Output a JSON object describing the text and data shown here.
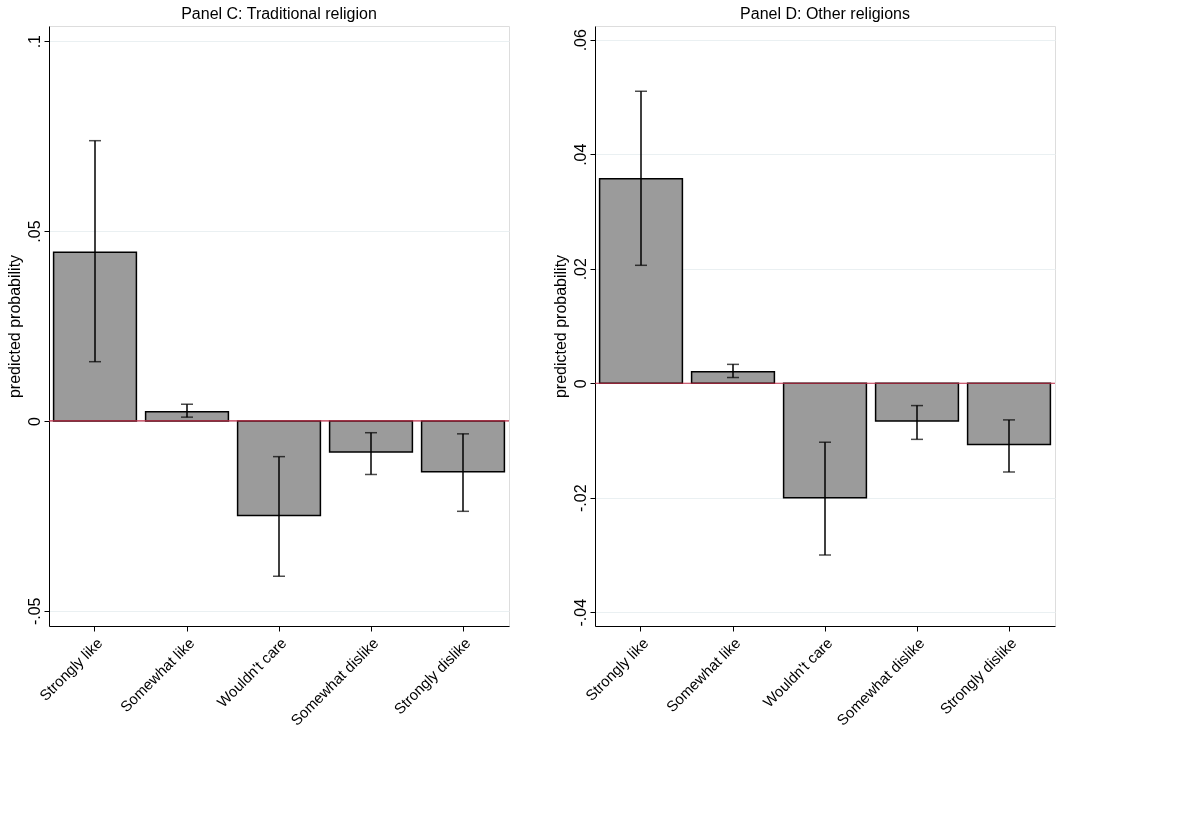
{
  "chart_data": [
    {
      "type": "bar",
      "title": "Panel C: Traditional religion",
      "ylabel": "predicted probability",
      "categories": [
        "Strongly like",
        "Somewhat like",
        "Wouldn't care",
        "Somewhat dislike",
        "Strongly dislike"
      ],
      "values": [
        0.0444,
        0.0024,
        -0.0249,
        -0.0082,
        -0.0134
      ],
      "errors": [
        [
          0.0156,
          0.0738
        ],
        [
          0.001,
          0.0044
        ],
        [
          -0.0409,
          -0.0094
        ],
        [
          -0.0141,
          -0.0031
        ],
        [
          -0.0238,
          -0.0034
        ]
      ],
      "color": "#9b9b9b",
      "ylim": [
        -0.054,
        0.104
      ],
      "yticks": [
        {
          "value": -0.05,
          "label": "-.05"
        },
        0,
        {
          "value": 0.05,
          "label": ".05"
        },
        {
          "value": 0.1,
          "label": ".1"
        }
      ],
      "ref_lines": [
        {
          "axis": "y",
          "value": 0,
          "color": "#c0304a"
        }
      ],
      "grid": "y"
    },
    {
      "type": "bar",
      "title": "Panel D: Other religions",
      "ylabel": "predicted probability",
      "categories": [
        "Strongly like",
        "Somewhat like",
        "Wouldn't care",
        "Somewhat dislike",
        "Strongly dislike"
      ],
      "values": [
        0.0357,
        0.002,
        -0.02,
        -0.0066,
        -0.0107
      ],
      "errors": [
        [
          0.0206,
          0.051
        ],
        [
          0.001,
          0.0033
        ],
        [
          -0.03,
          -0.0103
        ],
        [
          -0.0098,
          -0.0039
        ],
        [
          -0.0155,
          -0.0064
        ]
      ],
      "color": "#9b9b9b",
      "ylim": [
        -0.0424,
        0.0624
      ],
      "yticks": [
        {
          "value": -0.04,
          "label": "-.04"
        },
        {
          "value": -0.02,
          "label": "-.02"
        },
        0,
        {
          "value": 0.02,
          "label": ".02"
        },
        {
          "value": 0.04,
          "label": ".04"
        },
        {
          "value": 0.06,
          "label": ".06"
        }
      ],
      "ref_lines": [
        {
          "axis": "y",
          "value": 0,
          "color": "#c0304a"
        }
      ],
      "grid": "y"
    }
  ]
}
